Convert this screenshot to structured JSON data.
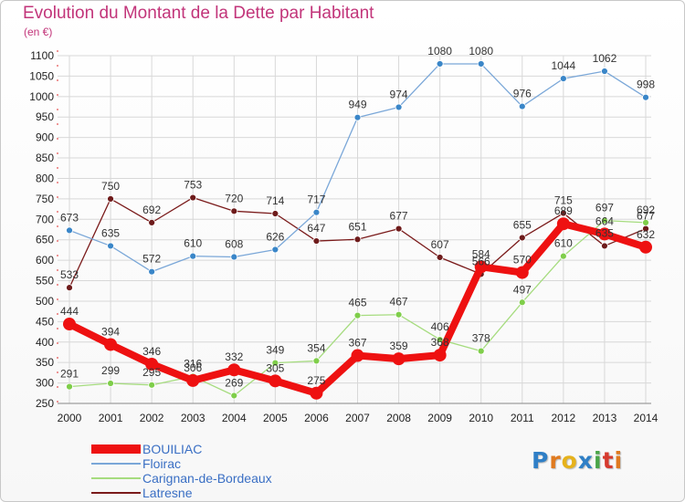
{
  "colors": {
    "title": "#c2357a",
    "grid": "#d8d8d8",
    "axis_text": "#222222",
    "legend_text": "#3a6fc4"
  },
  "logo": {
    "letters": [
      "P",
      "r",
      "o",
      "x",
      "i",
      "t",
      "i"
    ]
  },
  "chart_data": {
    "type": "line",
    "title": "Evolution du Montant de la Dette par Habitant",
    "ylabel": "(en €)",
    "xlabel": "",
    "ylim": [
      250,
      1100
    ],
    "y_ticks": [
      250,
      300,
      350,
      400,
      450,
      500,
      550,
      600,
      650,
      700,
      750,
      800,
      850,
      900,
      950,
      1000,
      1050,
      1100
    ],
    "categories": [
      "2000",
      "2001",
      "2002",
      "2003",
      "2004",
      "2005",
      "2006",
      "2007",
      "2008",
      "2009",
      "2010",
      "2011",
      "2012",
      "2013",
      "2014"
    ],
    "grid": true,
    "legend_position": "bottom-left",
    "series": [
      {
        "name": "Latresne",
        "color": "#7a1a1a",
        "point_color": "#6e1b1b",
        "width": 1.3,
        "marker": 3.5,
        "values": [
          533,
          750,
          692,
          753,
          720,
          714,
          647,
          651,
          677,
          607,
          566,
          655,
          715,
          635,
          677
        ]
      },
      {
        "name": "Carignan-de-Bordeaux",
        "color": "#a6dc7f",
        "point_color": "#7fce4a",
        "width": 1.3,
        "marker": 3.5,
        "values": [
          291,
          299,
          295,
          316,
          269,
          349,
          354,
          465,
          467,
          406,
          378,
          497,
          610,
          697,
          692
        ]
      },
      {
        "name": "Floirac",
        "color": "#7aa7d8",
        "point_color": "#3a86c8",
        "width": 1.3,
        "marker": 3.5,
        "values": [
          673,
          635,
          572,
          610,
          608,
          626,
          717,
          949,
          974,
          1080,
          1080,
          976,
          1044,
          1062,
          998
        ]
      },
      {
        "name": "BOUILIAC",
        "color": "#ee1111",
        "point_color": "#ee1111",
        "width": 8,
        "marker": 7,
        "values": [
          444,
          394,
          346,
          306,
          332,
          305,
          275,
          367,
          359,
          368,
          584,
          570,
          689,
          664,
          632
        ]
      }
    ]
  }
}
